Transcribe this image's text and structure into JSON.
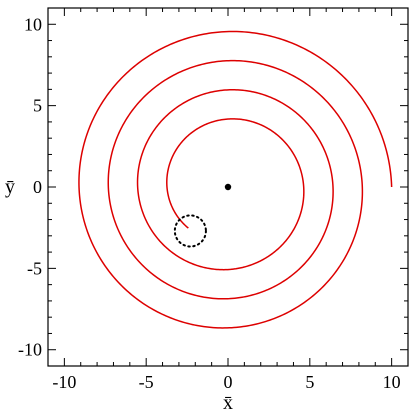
{
  "chart_data": {
    "type": "line",
    "title": "",
    "xlabel": "x̄",
    "ylabel": "ȳ",
    "xlim": [
      -11,
      11
    ],
    "ylim": [
      -11,
      11
    ],
    "xticks_major": [
      -10,
      -5,
      0,
      5,
      10
    ],
    "yticks_major": [
      -10,
      -5,
      0,
      5,
      10
    ],
    "xtick_labels": [
      "-10",
      "-5",
      "0",
      "5",
      "10"
    ],
    "ytick_labels": [
      "-10",
      "-5",
      "0",
      "5",
      "10"
    ],
    "minor_tick_step": 1,
    "grid": false,
    "spiral_color": "#dd0000",
    "spiral": {
      "start": [
        10.0,
        0.0
      ],
      "end": [
        -2.4,
        -2.5
      ],
      "start_radius": 10.0,
      "end_radius": 3.5,
      "turns": 4.37,
      "winding": "counterclockwise"
    },
    "center_point": [
      0,
      0
    ],
    "target_circle": {
      "center": [
        -2.3,
        -2.7
      ],
      "radius": 0.95,
      "style": "dotted"
    }
  }
}
